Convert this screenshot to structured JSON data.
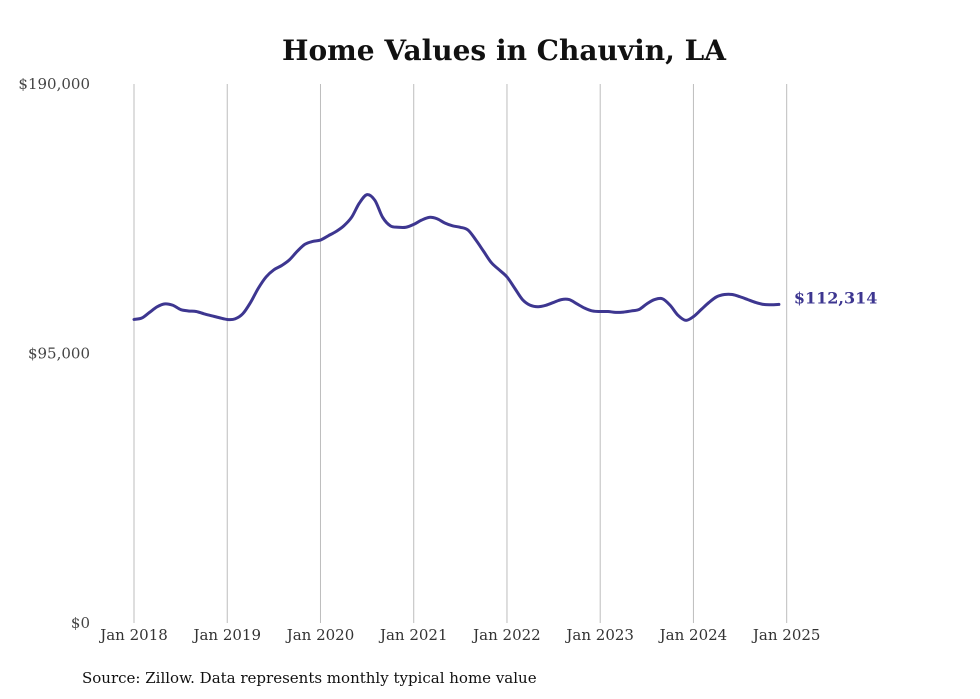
{
  "chart_data": {
    "type": "line",
    "title": "Home Values in Chauvin, LA",
    "xlabel": "",
    "ylabel": "",
    "ylim": [
      0,
      190000
    ],
    "y_ticks": [
      {
        "value": 0,
        "label": "$0"
      },
      {
        "value": 95000,
        "label": "$95,000"
      },
      {
        "value": 190000,
        "label": "$190,000"
      }
    ],
    "x_ticks": [
      {
        "index": 0,
        "label": "Jan 2018"
      },
      {
        "index": 12,
        "label": "Jan 2019"
      },
      {
        "index": 24,
        "label": "Jan 2020"
      },
      {
        "index": 36,
        "label": "Jan 2021"
      },
      {
        "index": 48,
        "label": "Jan 2022"
      },
      {
        "index": 60,
        "label": "Jan 2023"
      },
      {
        "index": 72,
        "label": "Jan 2024"
      },
      {
        "index": 84,
        "label": "Jan 2025"
      }
    ],
    "grid": "vertical-at-x-ticks",
    "line_color": "#3d3690",
    "series": [
      {
        "name": "Typical home value",
        "start": "Jan 2018",
        "frequency": "monthly",
        "values": [
          107000,
          107500,
          109500,
          111500,
          112500,
          112000,
          110500,
          110000,
          109800,
          109000,
          108300,
          107600,
          107000,
          107200,
          109000,
          113000,
          118000,
          122000,
          124500,
          126000,
          128000,
          131000,
          133500,
          134500,
          135000,
          136500,
          138000,
          140000,
          143000,
          148000,
          151000,
          149000,
          143000,
          140000,
          139500,
          139500,
          140500,
          142000,
          143000,
          142500,
          141000,
          140000,
          139500,
          138500,
          135000,
          131000,
          127000,
          124500,
          122000,
          118000,
          114000,
          112000,
          111500,
          112000,
          113000,
          114000,
          114000,
          112500,
          111000,
          110000,
          109800,
          109800,
          109500,
          109600,
          110000,
          110500,
          112500,
          114000,
          114300,
          112000,
          108500,
          106700,
          108000,
          110500,
          113000,
          115000,
          115800,
          115800,
          115000,
          114000,
          113000,
          112300,
          112200,
          112314
        ]
      }
    ],
    "end_label": "$112,314",
    "source_note": "Source: Zillow. Data represents monthly typical home value"
  }
}
